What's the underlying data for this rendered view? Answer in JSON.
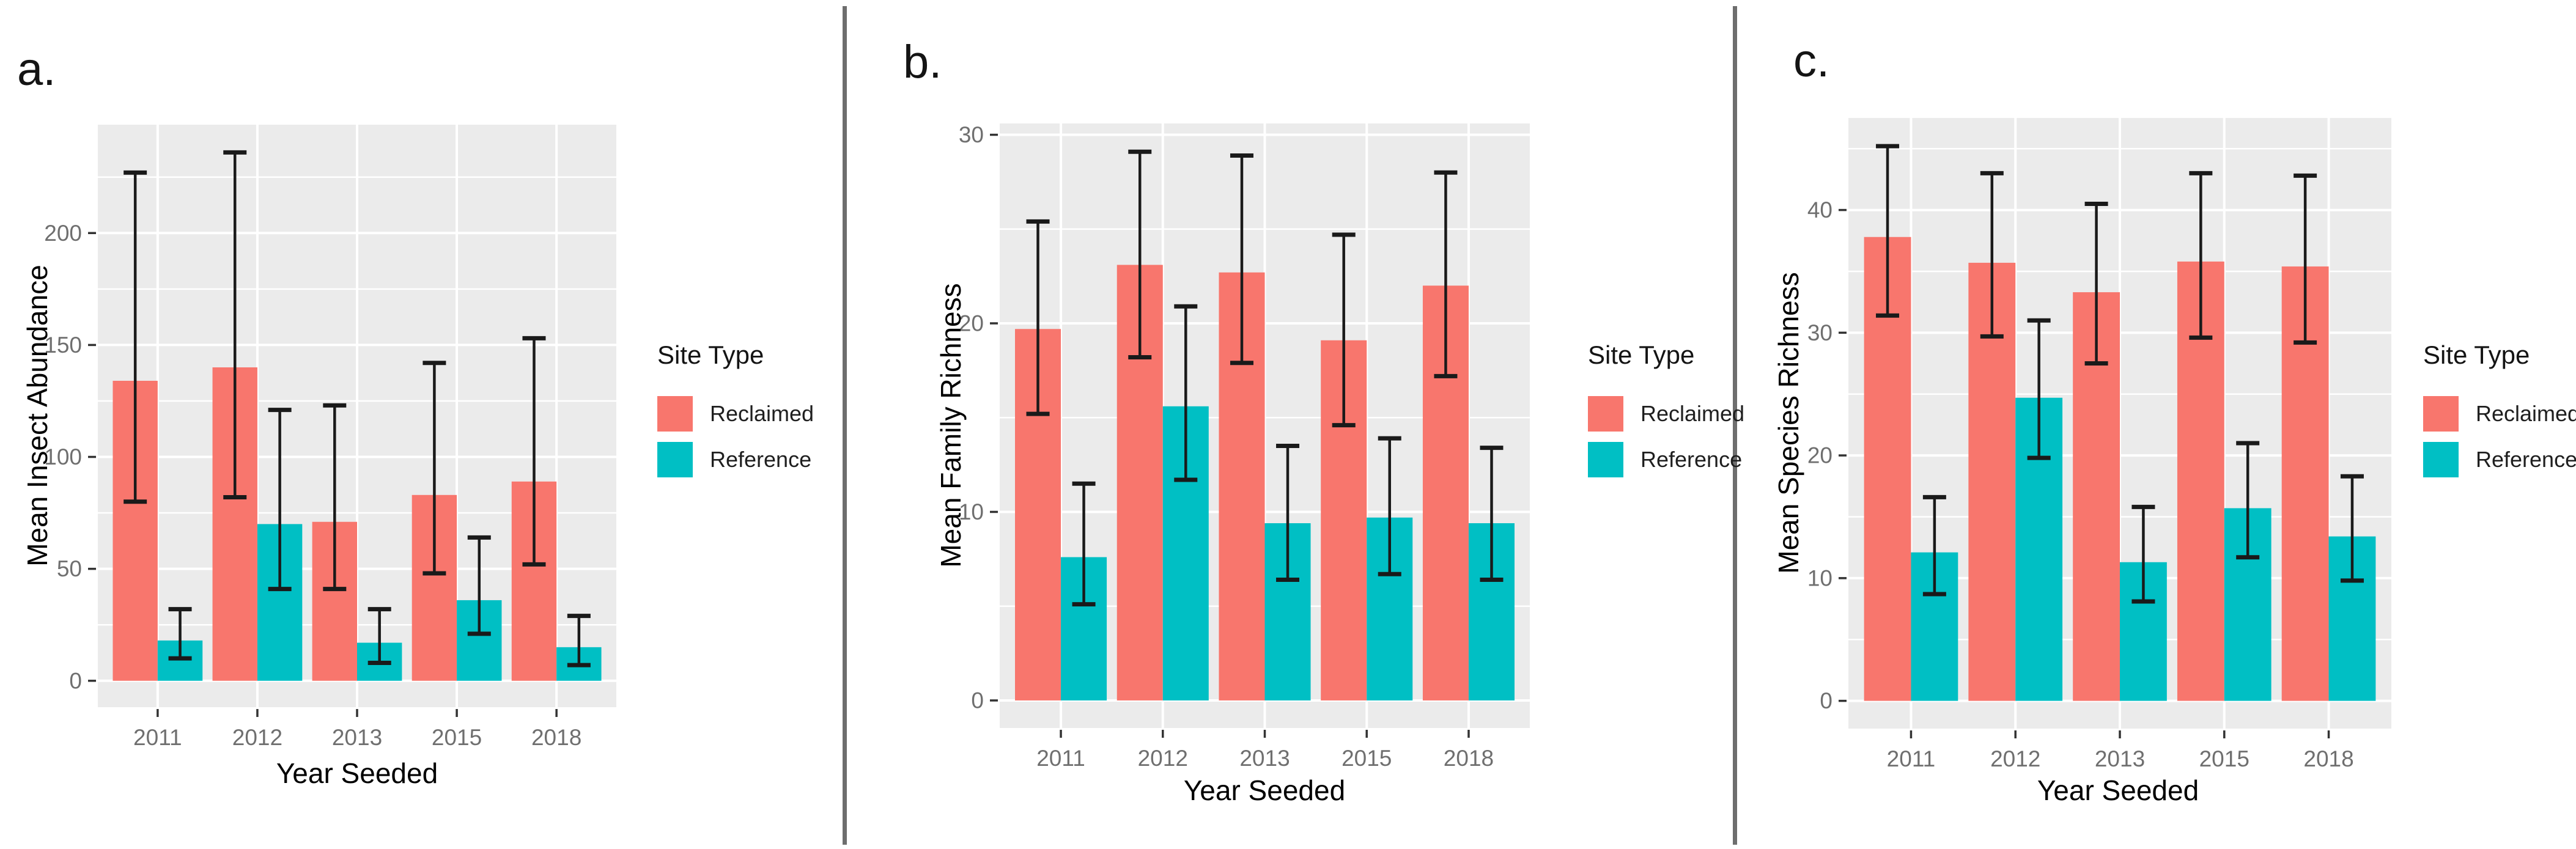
{
  "figure": {
    "background": "#FFFFFF",
    "panel_background": "#EBEBEB",
    "gridline_color": "#FFFFFF",
    "errorbar_color": "#1A1A1A",
    "axis_tick_color": "#333333",
    "tick_label_color": "#6F6F6F",
    "axis_title_color": "#000000",
    "divider_color": "#6E6E6E",
    "legend": {
      "title": "Site Type",
      "items": [
        {
          "label": "Reclaimed",
          "color": "#F8766D"
        },
        {
          "label": "Reference",
          "color": "#00BFC4"
        }
      ]
    }
  },
  "chart_data": [
    {
      "type": "bar",
      "panel_label": "a.",
      "title": "",
      "ylabel": "Mean Insect Abundance",
      "xlabel": "Year Seeded",
      "legend_title": "Site Type",
      "legend_position": "right",
      "grid": true,
      "categories": [
        "2011",
        "2012",
        "2013",
        "2015",
        "2018"
      ],
      "yticks": [
        0,
        50,
        100,
        150,
        200
      ],
      "ylim": [
        -11.8,
        248.4
      ],
      "series": [
        {
          "name": "Reclaimed",
          "color": "#F8766D",
          "values": [
            134,
            140,
            71,
            83,
            89
          ],
          "error_low": [
            80,
            82,
            41,
            48,
            52
          ],
          "error_high": [
            227,
            236,
            123,
            142,
            153
          ]
        },
        {
          "name": "Reference",
          "color": "#00BFC4",
          "values": [
            18,
            70,
            17,
            36,
            15
          ],
          "error_low": [
            10,
            41,
            8,
            21,
            7
          ],
          "error_high": [
            32,
            121,
            32,
            64,
            29
          ]
        }
      ]
    },
    {
      "type": "bar",
      "panel_label": "b.",
      "title": "",
      "ylabel": "Mean Family Richness",
      "xlabel": "Year Seeded",
      "legend_title": "Site Type",
      "legend_position": "right",
      "grid": true,
      "categories": [
        "2011",
        "2012",
        "2013",
        "2015",
        "2018"
      ],
      "yticks": [
        0,
        10,
        20,
        30
      ],
      "ylim": [
        -1.46,
        30.6
      ],
      "series": [
        {
          "name": "Reclaimed",
          "color": "#F8766D",
          "values": [
            19.7,
            23.1,
            22.7,
            19.1,
            22.0
          ],
          "error_low": [
            15.2,
            18.2,
            17.9,
            14.6,
            17.2
          ],
          "error_high": [
            25.4,
            29.1,
            28.9,
            24.7,
            28.0
          ]
        },
        {
          "name": "Reference",
          "color": "#00BFC4",
          "values": [
            7.6,
            15.6,
            9.4,
            9.7,
            9.4
          ],
          "error_low": [
            5.1,
            11.7,
            6.4,
            6.7,
            6.4
          ],
          "error_high": [
            11.5,
            20.9,
            13.5,
            13.9,
            13.4
          ]
        }
      ]
    },
    {
      "type": "bar",
      "panel_label": "c.",
      "title": "",
      "ylabel": "Mean Species Richness",
      "xlabel": "Year Seeded",
      "legend_title": "Site Type",
      "legend_position": "right",
      "grid": true,
      "categories": [
        "2011",
        "2012",
        "2013",
        "2015",
        "2018"
      ],
      "yticks": [
        0,
        10,
        20,
        30,
        40
      ],
      "ylim": [
        -2.26,
        47.5
      ],
      "series": [
        {
          "name": "Reclaimed",
          "color": "#F8766D",
          "values": [
            37.8,
            35.7,
            33.3,
            35.8,
            35.4
          ],
          "error_low": [
            31.4,
            29.7,
            27.5,
            29.6,
            29.2
          ],
          "error_high": [
            45.2,
            43.0,
            40.5,
            43.0,
            42.8
          ]
        },
        {
          "name": "Reference",
          "color": "#00BFC4",
          "values": [
            12.1,
            24.7,
            11.3,
            15.7,
            13.4
          ],
          "error_low": [
            8.7,
            19.8,
            8.1,
            11.7,
            9.8
          ],
          "error_high": [
            16.6,
            31.0,
            15.8,
            21.0,
            18.3
          ]
        }
      ]
    }
  ]
}
